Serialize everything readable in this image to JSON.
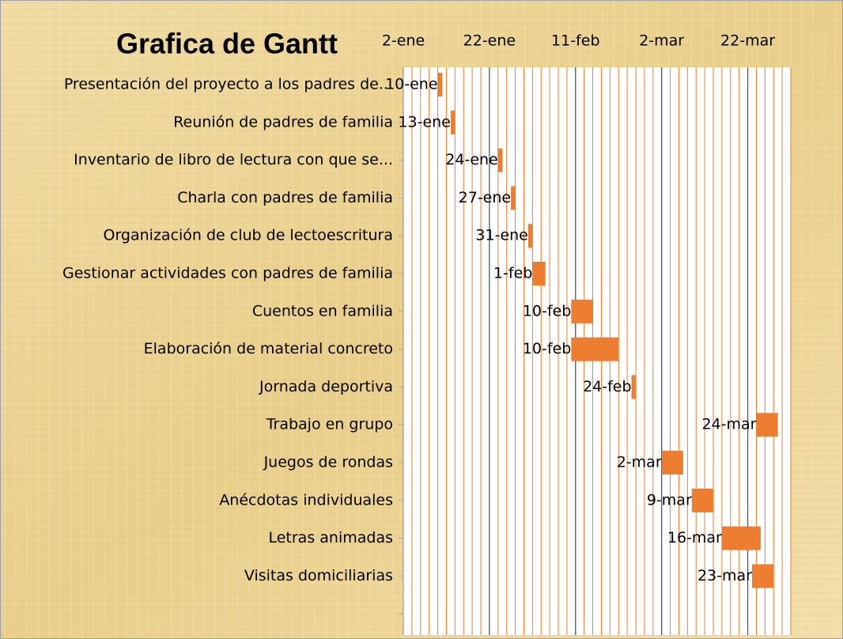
{
  "chart_data": {
    "type": "gantt",
    "title": "Grafica de Gantt",
    "categories": [
      "Presentación del proyecto a los padres de...",
      "Reunión de padres de familia",
      "Inventario de libro de lectura con que se...",
      "Charla con padres de familia",
      "Organización de club de lectoescritura",
      "Gestionar actividades con padres de familia",
      "Cuentos en familia",
      "Elaboración de material concreto",
      "Jornada deportiva",
      "Trabajo en grupo",
      "Juegos de rondas",
      "Anécdotas individuales",
      "Letras animadas",
      "Visitas domiciliarias"
    ],
    "start": [
      10,
      13,
      24,
      27,
      31,
      32,
      41,
      41,
      55,
      84,
      62,
      69,
      76,
      83
    ],
    "duration": [
      1,
      1,
      1,
      1,
      1,
      3,
      5,
      11,
      1,
      5,
      5,
      5,
      9,
      5
    ],
    "value_labels": [
      "10-ene",
      "13-ene",
      "24-ene",
      "27-ene",
      "31-ene",
      "1-feb",
      "10-feb",
      "10-feb",
      "24-feb",
      "24-mar",
      "2-mar",
      "9-mar",
      "16-mar",
      "23-mar"
    ],
    "color": "#ed7d31",
    "xlim": [
      2,
      92
    ],
    "xticks": [
      {
        "value": 2,
        "label": "2-ene"
      },
      {
        "value": 22,
        "label": "22-ene"
      },
      {
        "value": 42,
        "label": "11-feb"
      },
      {
        "value": 62,
        "label": "2-mar"
      },
      {
        "value": 82,
        "label": "22-mar"
      }
    ],
    "grid": true
  }
}
